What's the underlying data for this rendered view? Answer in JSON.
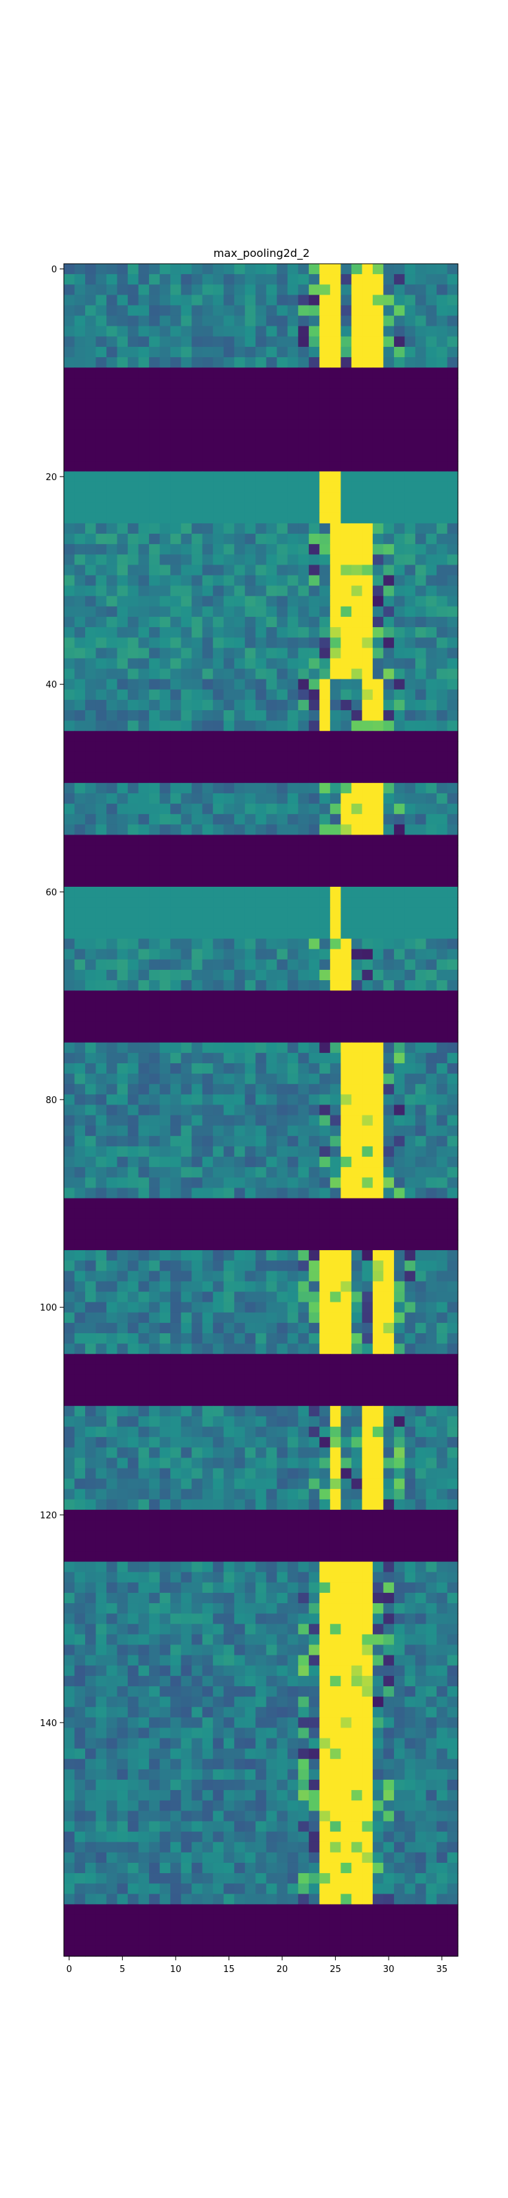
{
  "chart_data": {
    "type": "heatmap",
    "title": "max_pooling2d_2",
    "xlabel": "",
    "ylabel": "",
    "colormap": "viridis",
    "x_range": [
      -0.5,
      36.5
    ],
    "y_range": [
      -0.5,
      162.5
    ],
    "x_ticks": [
      0,
      5,
      10,
      15,
      20,
      25,
      30,
      35
    ],
    "y_ticks": [
      0,
      20,
      40,
      60,
      80,
      100,
      120,
      140
    ],
    "n_cols": 37,
    "n_rows": 163,
    "grid": false,
    "legend": "none",
    "colors": {
      "min": "#440154",
      "mid_low": "#3b528b",
      "mid": "#21918c",
      "mid_high": "#5ec962",
      "max": "#fde725"
    },
    "row_blocks": [
      {
        "rows": [
          0,
          9
        ],
        "kind": "active",
        "hot_cols": [
          24,
          25,
          27,
          28,
          29
        ],
        "level": 0.42
      },
      {
        "rows": [
          10,
          19
        ],
        "kind": "zero"
      },
      {
        "rows": [
          20,
          24
        ],
        "kind": "flat",
        "hot_cols": [
          24,
          25
        ],
        "level": 0.5
      },
      {
        "rows": [
          25,
          39
        ],
        "kind": "active",
        "hot_cols": [
          25,
          26,
          27,
          28
        ],
        "level": 0.45
      },
      {
        "rows": [
          40,
          44
        ],
        "kind": "active",
        "hot_cols": [
          24,
          28,
          29
        ],
        "level": 0.42
      },
      {
        "rows": [
          45,
          49
        ],
        "kind": "zero"
      },
      {
        "rows": [
          50,
          54
        ],
        "kind": "active",
        "hot_cols": [
          26,
          27,
          28,
          29
        ],
        "level": 0.42
      },
      {
        "rows": [
          55,
          59
        ],
        "kind": "zero"
      },
      {
        "rows": [
          60,
          64
        ],
        "kind": "flat",
        "hot_cols": [
          25
        ],
        "level": 0.5
      },
      {
        "rows": [
          65,
          69
        ],
        "kind": "active",
        "hot_cols": [
          25,
          26
        ],
        "level": 0.44
      },
      {
        "rows": [
          70,
          74
        ],
        "kind": "zero"
      },
      {
        "rows": [
          75,
          89
        ],
        "kind": "active",
        "hot_cols": [
          26,
          27,
          28,
          29
        ],
        "level": 0.42
      },
      {
        "rows": [
          90,
          94
        ],
        "kind": "zero"
      },
      {
        "rows": [
          95,
          104
        ],
        "kind": "active",
        "hot_cols": [
          24,
          25,
          26,
          29,
          30
        ],
        "level": 0.42
      },
      {
        "rows": [
          105,
          109
        ],
        "kind": "zero"
      },
      {
        "rows": [
          110,
          119
        ],
        "kind": "active",
        "hot_cols": [
          25,
          28,
          29
        ],
        "level": 0.42
      },
      {
        "rows": [
          120,
          124
        ],
        "kind": "zero"
      },
      {
        "rows": [
          125,
          134
        ],
        "kind": "active",
        "hot_cols": [
          24,
          25,
          26,
          27,
          28
        ],
        "level": 0.42
      },
      {
        "rows": [
          135,
          157
        ],
        "kind": "active",
        "hot_cols": [
          24,
          25,
          26,
          27,
          28
        ],
        "level": 0.4
      },
      {
        "rows": [
          158,
          162
        ],
        "kind": "zero"
      }
    ]
  }
}
